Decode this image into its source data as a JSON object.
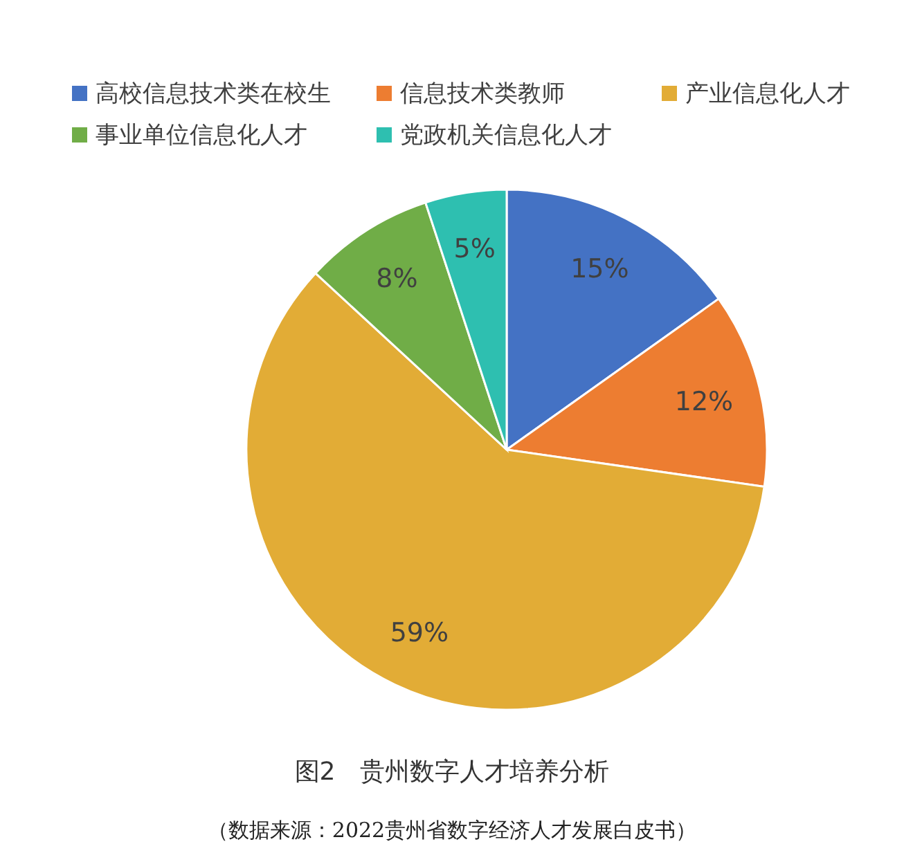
{
  "chart_data": {
    "type": "pie",
    "title": "图2　贵州数字人才培养分析",
    "annotations": [
      "（数据来源：2022贵州省数字经济人才发展白皮书）"
    ],
    "categories": [
      "高校信息技术类在校生",
      "信息技术类教师",
      "产业信息化人才",
      "事业单位信息化人才",
      "党政机关信息化人才"
    ],
    "values": [
      15,
      12,
      59,
      8,
      5
    ],
    "value_labels": [
      "15%",
      "12%",
      "59%",
      "8%",
      "5%"
    ],
    "colors": [
      "#4472c4",
      "#ed7d31",
      "#e2ac36",
      "#70ad47",
      "#2ebfb0"
    ],
    "legend": "top"
  }
}
